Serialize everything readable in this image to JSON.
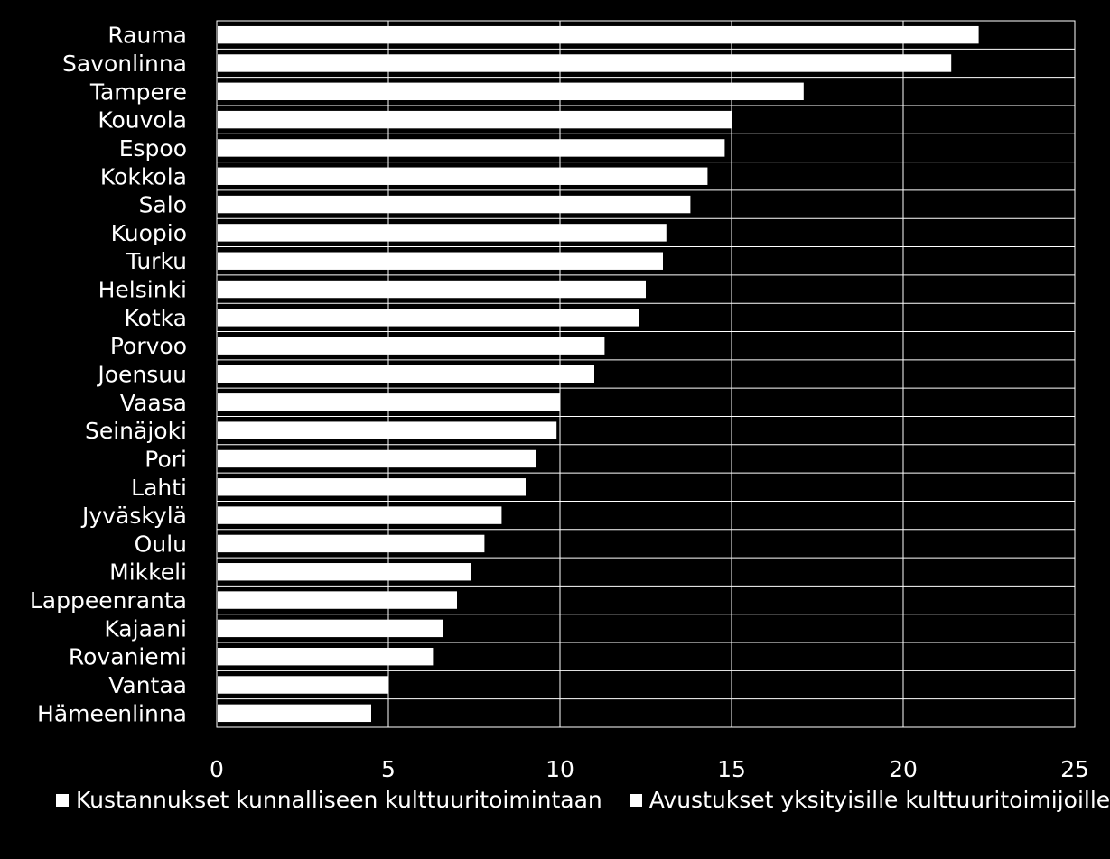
{
  "chart_data": {
    "type": "bar",
    "orientation": "horizontal",
    "title": "",
    "xlabel": "",
    "ylabel": "",
    "xlim": [
      0,
      25
    ],
    "xticks": [
      0,
      5,
      10,
      15,
      20,
      25
    ],
    "grid": true,
    "legend_position": "bottom",
    "categories": [
      "Rauma",
      "Savonlinna",
      "Tampere",
      "Kouvola",
      "Espoo",
      "Kokkola",
      "Salo",
      "Kuopio",
      "Turku",
      "Helsinki",
      "Kotka",
      "Porvoo",
      "Joensuu",
      "Vaasa",
      "Seinäjoki",
      "Pori",
      "Lahti",
      "Jyväskylä",
      "Oulu",
      "Mikkeli",
      "Lappeenranta",
      "Kajaani",
      "Rovaniemi",
      "Vantaa",
      "Hämeenlinna"
    ],
    "series": [
      {
        "name": "Kustannukset kunnalliseen kulttuuritoimintaan",
        "values": [
          22.2,
          21.4,
          17.1,
          15.0,
          14.8,
          14.3,
          13.8,
          13.1,
          13.0,
          12.5,
          12.3,
          11.3,
          11.0,
          10.0,
          9.9,
          9.3,
          9.0,
          8.3,
          7.8,
          7.4,
          7.0,
          6.6,
          6.3,
          5.0,
          4.5
        ]
      },
      {
        "name": "Avustukset yksityisille kulttuuritoimijoille",
        "values": [
          0,
          0,
          0,
          0,
          0,
          0,
          0,
          0,
          0,
          0,
          0,
          0,
          0,
          0,
          0,
          0,
          0,
          0,
          0,
          0,
          0,
          0,
          0,
          0,
          0
        ]
      }
    ],
    "colors": {
      "background": "#000000",
      "bar": "#ffffff",
      "grid": "#ffffff",
      "text": "#ffffff"
    }
  }
}
